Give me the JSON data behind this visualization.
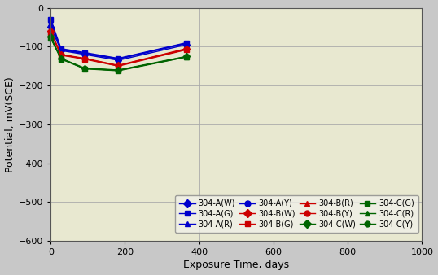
{
  "title": "",
  "xlabel": "Exposure Time, days",
  "ylabel": "Potential, mV(SCE)",
  "xlim": [
    0,
    1000
  ],
  "ylim": [
    -600,
    0
  ],
  "xticks": [
    0,
    200,
    400,
    600,
    800,
    1000
  ],
  "yticks": [
    0,
    -100,
    -200,
    -300,
    -400,
    -500,
    -600
  ],
  "background_color": "#c8c8c8",
  "plot_bg_color": "#e8e8d0",
  "series": [
    {
      "label": "304-A(W)",
      "color": "#0000cc",
      "marker": "D",
      "x": [
        0,
        28,
        91,
        182,
        365
      ],
      "y": [
        -50,
        -110,
        -120,
        -135,
        -95
      ]
    },
    {
      "label": "304-A(G)",
      "color": "#0000cc",
      "marker": "s",
      "x": [
        0,
        28,
        91,
        182,
        365
      ],
      "y": [
        -30,
        -105,
        -115,
        -130,
        -90
      ]
    },
    {
      "label": "304-A(R)",
      "color": "#0000cc",
      "marker": "^",
      "x": [
        0,
        28,
        91,
        182,
        365
      ],
      "y": [
        -40,
        -108,
        -118,
        -132,
        -92
      ]
    },
    {
      "label": "304-A(Y)",
      "color": "#0000cc",
      "marker": "o",
      "x": [
        0,
        28,
        91,
        182,
        365
      ],
      "y": [
        -35,
        -107,
        -117,
        -131,
        -91
      ]
    },
    {
      "label": "304-B(W)",
      "color": "#cc0000",
      "marker": "D",
      "x": [
        0,
        28,
        91,
        182,
        365
      ],
      "y": [
        -60,
        -120,
        -130,
        -148,
        -105
      ]
    },
    {
      "label": "304-B(G)",
      "color": "#cc0000",
      "marker": "s",
      "x": [
        0,
        28,
        91,
        182,
        365
      ],
      "y": [
        -65,
        -122,
        -132,
        -150,
        -108
      ]
    },
    {
      "label": "304-B(R)",
      "color": "#cc0000",
      "marker": "^",
      "x": [
        0,
        28,
        91,
        182,
        365
      ],
      "y": [
        -62,
        -121,
        -131,
        -149,
        -106
      ]
    },
    {
      "label": "304-B(Y)",
      "color": "#cc0000",
      "marker": "o",
      "x": [
        0,
        28,
        91,
        182,
        365
      ],
      "y": [
        -63,
        -121,
        -131,
        -149,
        -107
      ]
    },
    {
      "label": "304-C(W)",
      "color": "#006400",
      "marker": "D",
      "x": [
        0,
        28,
        91,
        182,
        365
      ],
      "y": [
        -75,
        -130,
        -155,
        -160,
        -125
      ]
    },
    {
      "label": "304-C(G)",
      "color": "#006400",
      "marker": "s",
      "x": [
        0,
        28,
        91,
        182,
        365
      ],
      "y": [
        -78,
        -132,
        -157,
        -162,
        -127
      ]
    },
    {
      "label": "304-C(R)",
      "color": "#006400",
      "marker": "^",
      "x": [
        0,
        28,
        91,
        182,
        365
      ],
      "y": [
        -76,
        -131,
        -156,
        -161,
        -126
      ]
    },
    {
      "label": "304-C(Y)",
      "color": "#006400",
      "marker": "o",
      "x": [
        0,
        28,
        91,
        182,
        365
      ],
      "y": [
        -77,
        -131,
        -156,
        -161,
        -126
      ]
    }
  ],
  "linewidth": 1.0,
  "markersize": 4,
  "figsize": [
    5.38,
    3.38
  ],
  "dpi": 100,
  "legend_groups": [
    {
      "group": "A",
      "color": "#0000cc"
    },
    {
      "group": "B",
      "color": "#cc0000"
    },
    {
      "group": "C",
      "color": "#006400"
    }
  ],
  "legend_suffixes": [
    "W",
    "G",
    "R",
    "Y"
  ],
  "legend_markers": {
    "W": "D",
    "G": "s",
    "R": "^",
    "Y": "o"
  }
}
